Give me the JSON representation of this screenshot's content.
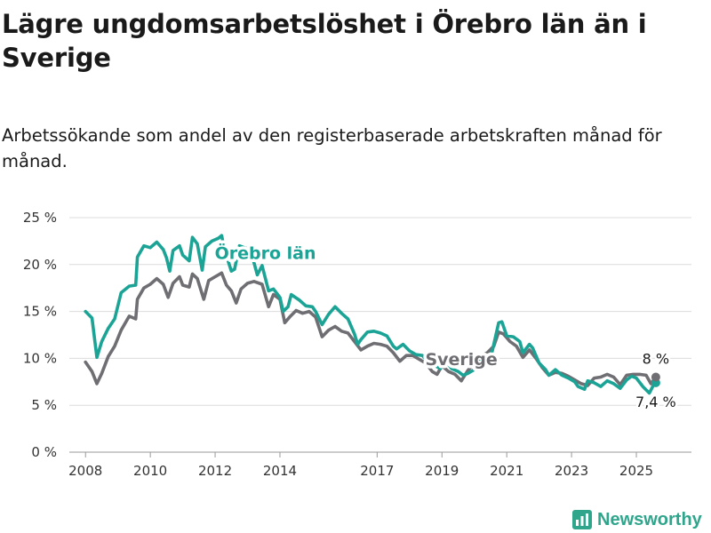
{
  "title": "Lägre ungdomsarbetslöshet i Örebro län än i Sverige",
  "subtitle": "Arbetssökande som andel av den registerbaserade arbetskraften månad för månad.",
  "brand": "Newsworthy",
  "colors": {
    "orebro": "#1ba496",
    "sverige": "#6e6e73",
    "grid": "#dcdcdc",
    "brand": "#2fa58b"
  },
  "chart_data": {
    "type": "line",
    "title": "Lägre ungdomsarbetslöshet i Örebro län än i Sverige",
    "ylabel": "",
    "xlabel": "",
    "ylim": [
      0,
      25
    ],
    "xlim": [
      2007.5,
      2026.7
    ],
    "y_ticks": [
      "0 %",
      "5 %",
      "10 %",
      "15 %",
      "20 %",
      "25 %"
    ],
    "x_ticks": [
      "2008",
      "2010",
      "2012",
      "2014",
      "2017",
      "2019",
      "2021",
      "2023",
      "2025"
    ],
    "grid": true,
    "series": [
      {
        "name": "Örebro län",
        "color": "#1ba496",
        "end_label": "7,4 %",
        "points": [
          [
            2008.0,
            15.0
          ],
          [
            2008.2,
            14.3
          ],
          [
            2008.35,
            10.1
          ],
          [
            2008.5,
            11.8
          ],
          [
            2008.7,
            13.2
          ],
          [
            2008.9,
            14.2
          ],
          [
            2009.1,
            17.0
          ],
          [
            2009.35,
            17.7
          ],
          [
            2009.55,
            17.8
          ],
          [
            2009.6,
            20.8
          ],
          [
            2009.8,
            22.0
          ],
          [
            2010.0,
            21.8
          ],
          [
            2010.2,
            22.4
          ],
          [
            2010.4,
            21.6
          ],
          [
            2010.5,
            20.7
          ],
          [
            2010.6,
            19.3
          ],
          [
            2010.7,
            21.5
          ],
          [
            2010.9,
            22.0
          ],
          [
            2011.0,
            21.0
          ],
          [
            2011.2,
            20.4
          ],
          [
            2011.3,
            22.9
          ],
          [
            2011.45,
            22.2
          ],
          [
            2011.6,
            19.4
          ],
          [
            2011.7,
            21.9
          ],
          [
            2011.9,
            22.5
          ],
          [
            2012.1,
            22.8
          ],
          [
            2012.2,
            23.1
          ],
          [
            2012.3,
            21.3
          ],
          [
            2012.4,
            20.4
          ],
          [
            2012.5,
            19.3
          ],
          [
            2012.6,
            19.5
          ],
          [
            2012.75,
            22.0
          ],
          [
            2012.9,
            21.8
          ],
          [
            2013.1,
            21.6
          ],
          [
            2013.2,
            20.2
          ],
          [
            2013.3,
            18.9
          ],
          [
            2013.45,
            19.9
          ],
          [
            2013.65,
            17.2
          ],
          [
            2013.8,
            17.4
          ],
          [
            2014.0,
            16.5
          ],
          [
            2014.1,
            15.0
          ],
          [
            2014.25,
            15.5
          ],
          [
            2014.35,
            16.8
          ],
          [
            2014.6,
            16.2
          ],
          [
            2014.8,
            15.6
          ],
          [
            2015.0,
            15.5
          ],
          [
            2015.1,
            15.0
          ],
          [
            2015.3,
            13.6
          ],
          [
            2015.5,
            14.7
          ],
          [
            2015.7,
            15.5
          ],
          [
            2015.9,
            14.8
          ],
          [
            2016.1,
            14.2
          ],
          [
            2016.3,
            12.6
          ],
          [
            2016.4,
            11.5
          ],
          [
            2016.5,
            12.0
          ],
          [
            2016.7,
            12.8
          ],
          [
            2016.9,
            12.9
          ],
          [
            2017.1,
            12.7
          ],
          [
            2017.3,
            12.4
          ],
          [
            2017.5,
            11.3
          ],
          [
            2017.6,
            11.0
          ],
          [
            2017.8,
            11.5
          ],
          [
            2018.0,
            10.8
          ],
          [
            2018.2,
            10.4
          ],
          [
            2018.4,
            10.3
          ],
          [
            2018.6,
            9.5
          ],
          [
            2018.8,
            9.2
          ],
          [
            2018.95,
            8.9
          ],
          [
            2019.1,
            9.8
          ],
          [
            2019.3,
            8.9
          ],
          [
            2019.5,
            8.6
          ],
          [
            2019.65,
            8.2
          ],
          [
            2019.8,
            8.4
          ],
          [
            2020.0,
            8.8
          ],
          [
            2020.2,
            9.8
          ],
          [
            2020.4,
            10.2
          ],
          [
            2020.5,
            10.0
          ],
          [
            2020.6,
            11.5
          ],
          [
            2020.75,
            13.8
          ],
          [
            2020.85,
            13.9
          ],
          [
            2021.0,
            12.4
          ],
          [
            2021.2,
            12.3
          ],
          [
            2021.4,
            11.8
          ],
          [
            2021.5,
            10.6
          ],
          [
            2021.7,
            11.5
          ],
          [
            2021.8,
            11.1
          ],
          [
            2022.0,
            9.5
          ],
          [
            2022.2,
            8.8
          ],
          [
            2022.3,
            8.2
          ],
          [
            2022.5,
            8.8
          ],
          [
            2022.7,
            8.2
          ],
          [
            2022.9,
            7.9
          ],
          [
            2023.1,
            7.5
          ],
          [
            2023.2,
            7.0
          ],
          [
            2023.4,
            6.7
          ],
          [
            2023.5,
            7.6
          ],
          [
            2023.7,
            7.4
          ],
          [
            2023.9,
            7.0
          ],
          [
            2024.1,
            7.6
          ],
          [
            2024.3,
            7.3
          ],
          [
            2024.5,
            6.8
          ],
          [
            2024.7,
            7.7
          ],
          [
            2024.85,
            8.1
          ],
          [
            2025.0,
            7.9
          ],
          [
            2025.2,
            7.0
          ],
          [
            2025.4,
            6.3
          ],
          [
            2025.55,
            7.3
          ],
          [
            2025.6,
            7.4
          ]
        ]
      },
      {
        "name": "Sverige",
        "color": "#6e6e73",
        "end_label": "8 %",
        "points": [
          [
            2008.0,
            9.6
          ],
          [
            2008.2,
            8.6
          ],
          [
            2008.35,
            7.3
          ],
          [
            2008.5,
            8.4
          ],
          [
            2008.7,
            10.2
          ],
          [
            2008.9,
            11.3
          ],
          [
            2009.1,
            13.0
          ],
          [
            2009.35,
            14.5
          ],
          [
            2009.55,
            14.2
          ],
          [
            2009.6,
            16.3
          ],
          [
            2009.8,
            17.5
          ],
          [
            2010.0,
            17.9
          ],
          [
            2010.2,
            18.5
          ],
          [
            2010.4,
            17.9
          ],
          [
            2010.55,
            16.5
          ],
          [
            2010.7,
            18.0
          ],
          [
            2010.9,
            18.7
          ],
          [
            2011.0,
            17.8
          ],
          [
            2011.2,
            17.6
          ],
          [
            2011.3,
            19.0
          ],
          [
            2011.45,
            18.5
          ],
          [
            2011.65,
            16.3
          ],
          [
            2011.8,
            18.3
          ],
          [
            2012.0,
            18.7
          ],
          [
            2012.2,
            19.1
          ],
          [
            2012.35,
            17.8
          ],
          [
            2012.5,
            17.2
          ],
          [
            2012.65,
            15.9
          ],
          [
            2012.8,
            17.4
          ],
          [
            2013.0,
            18.0
          ],
          [
            2013.2,
            18.2
          ],
          [
            2013.45,
            17.9
          ],
          [
            2013.65,
            15.5
          ],
          [
            2013.8,
            16.8
          ],
          [
            2014.0,
            16.3
          ],
          [
            2014.15,
            13.8
          ],
          [
            2014.3,
            14.4
          ],
          [
            2014.5,
            15.1
          ],
          [
            2014.7,
            14.8
          ],
          [
            2014.9,
            15.0
          ],
          [
            2015.1,
            14.4
          ],
          [
            2015.3,
            12.3
          ],
          [
            2015.5,
            13.0
          ],
          [
            2015.7,
            13.4
          ],
          [
            2015.9,
            12.9
          ],
          [
            2016.1,
            12.7
          ],
          [
            2016.3,
            11.8
          ],
          [
            2016.5,
            10.9
          ],
          [
            2016.7,
            11.3
          ],
          [
            2016.9,
            11.6
          ],
          [
            2017.1,
            11.5
          ],
          [
            2017.3,
            11.3
          ],
          [
            2017.5,
            10.6
          ],
          [
            2017.7,
            9.7
          ],
          [
            2017.9,
            10.3
          ],
          [
            2018.1,
            10.3
          ],
          [
            2018.3,
            9.9
          ],
          [
            2018.5,
            9.5
          ],
          [
            2018.7,
            8.6
          ],
          [
            2018.85,
            8.3
          ],
          [
            2019.0,
            9.2
          ],
          [
            2019.2,
            8.6
          ],
          [
            2019.4,
            8.3
          ],
          [
            2019.6,
            7.6
          ],
          [
            2019.8,
            8.7
          ],
          [
            2020.0,
            9.5
          ],
          [
            2020.2,
            10.2
          ],
          [
            2020.4,
            10.6
          ],
          [
            2020.6,
            11.3
          ],
          [
            2020.75,
            12.8
          ],
          [
            2020.9,
            12.6
          ],
          [
            2021.1,
            11.8
          ],
          [
            2021.3,
            11.3
          ],
          [
            2021.5,
            10.1
          ],
          [
            2021.7,
            10.9
          ],
          [
            2021.9,
            10.0
          ],
          [
            2022.1,
            9.0
          ],
          [
            2022.3,
            8.2
          ],
          [
            2022.5,
            8.5
          ],
          [
            2022.7,
            8.4
          ],
          [
            2022.9,
            8.1
          ],
          [
            2023.1,
            7.7
          ],
          [
            2023.3,
            7.3
          ],
          [
            2023.5,
            7.1
          ],
          [
            2023.7,
            7.9
          ],
          [
            2023.9,
            8.0
          ],
          [
            2024.1,
            8.3
          ],
          [
            2024.3,
            8.0
          ],
          [
            2024.5,
            7.2
          ],
          [
            2024.7,
            8.2
          ],
          [
            2024.9,
            8.3
          ],
          [
            2025.1,
            8.3
          ],
          [
            2025.3,
            8.2
          ],
          [
            2025.45,
            7.3
          ],
          [
            2025.6,
            8.0
          ]
        ]
      }
    ],
    "annotations": [
      {
        "text": "Örebro län",
        "series": 0,
        "x": 2013.55,
        "y": 20.6
      },
      {
        "text": "Sverige",
        "series": 1,
        "x": 2019.6,
        "y": 9.3
      }
    ]
  }
}
